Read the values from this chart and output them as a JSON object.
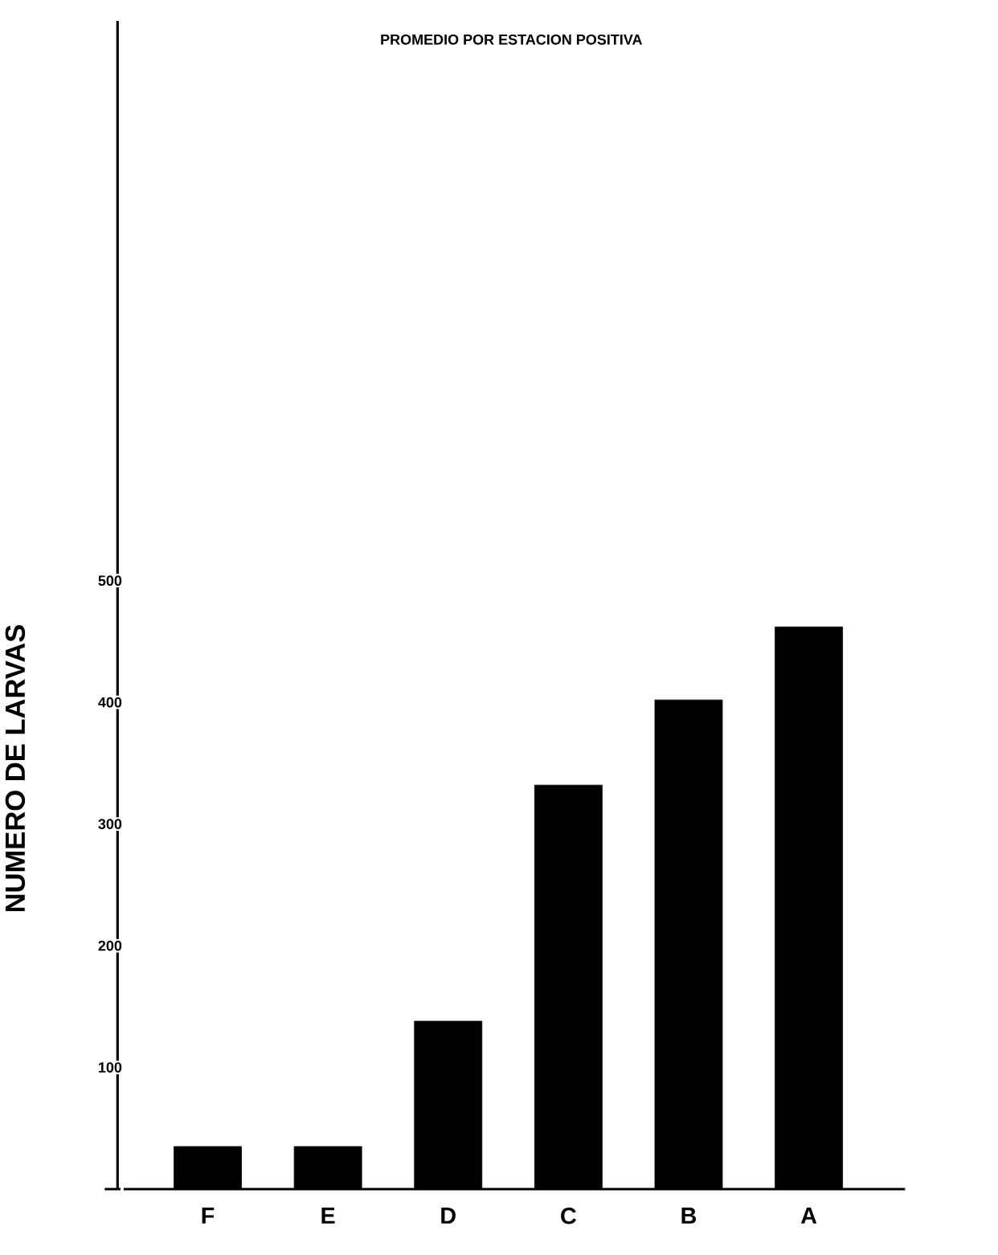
{
  "chart_data": {
    "type": "bar",
    "title": "PROMEDIO POR ESTACION POSITIVA",
    "ylabel": "NUMERO DE LARVAS",
    "categories": [
      "F",
      "E",
      "D",
      "C",
      "B",
      "A"
    ],
    "values": [
      35,
      35,
      138,
      332,
      402,
      462
    ],
    "color": "#000000",
    "ylim": [
      0,
      960
    ],
    "yticks": [
      {
        "value": 0,
        "label": null
      },
      100,
      200,
      300,
      400,
      500
    ]
  }
}
